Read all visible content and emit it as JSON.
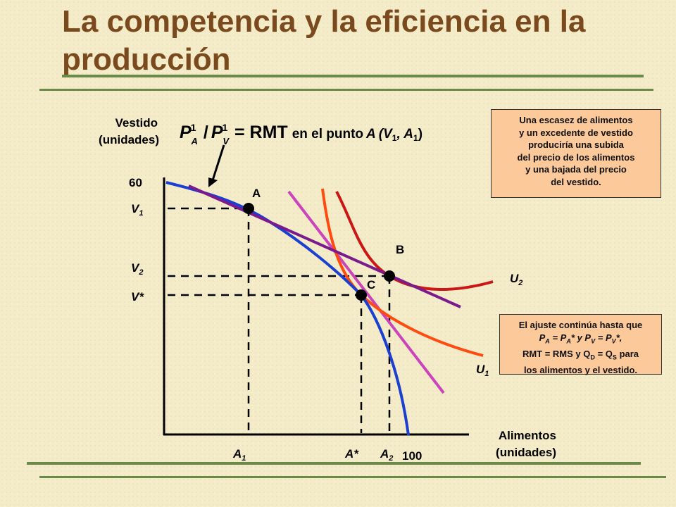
{
  "title": "La competencia y la eficiencia en la producción",
  "axes": {
    "y_label_1": "Vestido",
    "y_label_2": "(unidades)",
    "x_label_1": "Alimentos",
    "x_label_2": "(unidades)",
    "y_max_tick": "60",
    "x_max_tick": "100"
  },
  "ticks": {
    "V1": {
      "base": "V",
      "sub": "1"
    },
    "V2": {
      "base": "V",
      "sub": "2"
    },
    "Vstar": "V*",
    "A1": {
      "base": "A",
      "sub": "1"
    },
    "Astar": "A*",
    "A2": {
      "base": "A",
      "sub": "2"
    }
  },
  "points": {
    "A": "A",
    "B": "B",
    "C": "C"
  },
  "curves": {
    "U1": {
      "base": "U",
      "sub": "1"
    },
    "U2": {
      "base": "U",
      "sub": "2"
    }
  },
  "equation": {
    "lhs_p": "P",
    "sup1": "1",
    "subA": "A",
    "slash": "/",
    "subV": "V",
    "rhs": "= RMT",
    "tail_1": "en el punto",
    "tail_A": "A",
    "tail_paren": "(V",
    "tail_sub1": "1",
    "tail_comma": ", A",
    "tail_sub2": "1",
    "tail_close": ")"
  },
  "note_top": {
    "lines": [
      "Una escasez de alimentos",
      "y un excedente de vestido",
      "produciría una subida",
      "del precio de los alimentos",
      "y una bajada del precio",
      "del vestido."
    ]
  },
  "note_bottom": {
    "line1": "El ajuste continúa hasta que",
    "line2_a": "P",
    "line2_asub": "A",
    "line2_b": " = P",
    "line2_bsub": "A",
    "line2_c": "* y P",
    "line2_csub": "V",
    "line2_d": " = P",
    "line2_dsub": "V",
    "line2_e": "*,",
    "line3_a": "RMT = RMS y Q",
    "line3_asub": "D",
    "line3_b": " = Q",
    "line3_bsub": "S",
    "line3_c": " para",
    "line4": "los alimentos y el vestido."
  },
  "colors": {
    "frontier": "#1b3fd0",
    "price_line_1": "#7a1a8c",
    "price_line_2": "#cc44bb",
    "u1": "#ff4a10",
    "u2": "#cc1515",
    "title": "#7a4a1e",
    "rule": "#6b8a4a",
    "note_bg": "#fbc99a"
  }
}
